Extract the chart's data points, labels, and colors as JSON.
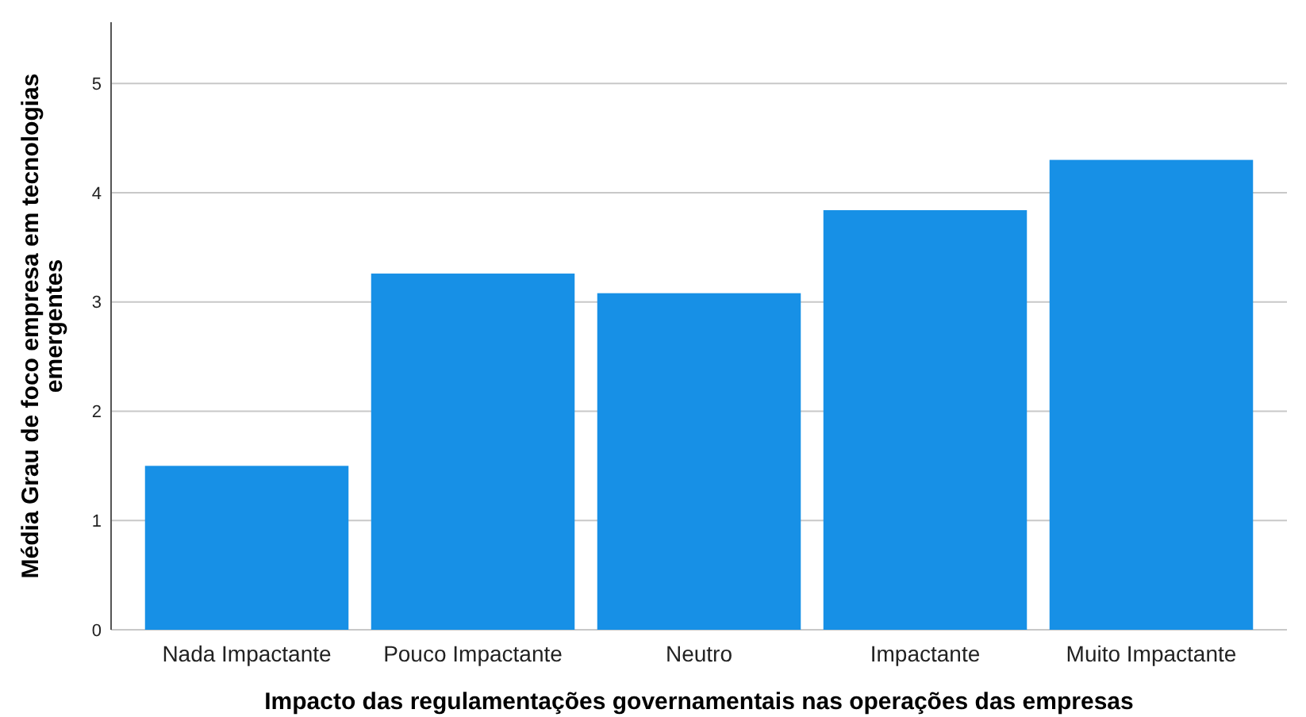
{
  "chart_data": {
    "type": "bar",
    "xlabel": "Impacto das regulamentações governamentais nas operações das empresas",
    "ylabel": "Média Grau de foco empresa em tecnologias emergentes",
    "categories": [
      "Nada Impactante",
      "Pouco Impactante",
      "Neutro",
      "Impactante",
      "Muito Impactante"
    ],
    "values": [
      1.5,
      3.26,
      3.08,
      3.84,
      4.3
    ],
    "color": "#1790e6",
    "ylim": [
      0,
      5.56
    ],
    "yticks": [
      0,
      1,
      2,
      3,
      4,
      5
    ],
    "grid": "y"
  }
}
